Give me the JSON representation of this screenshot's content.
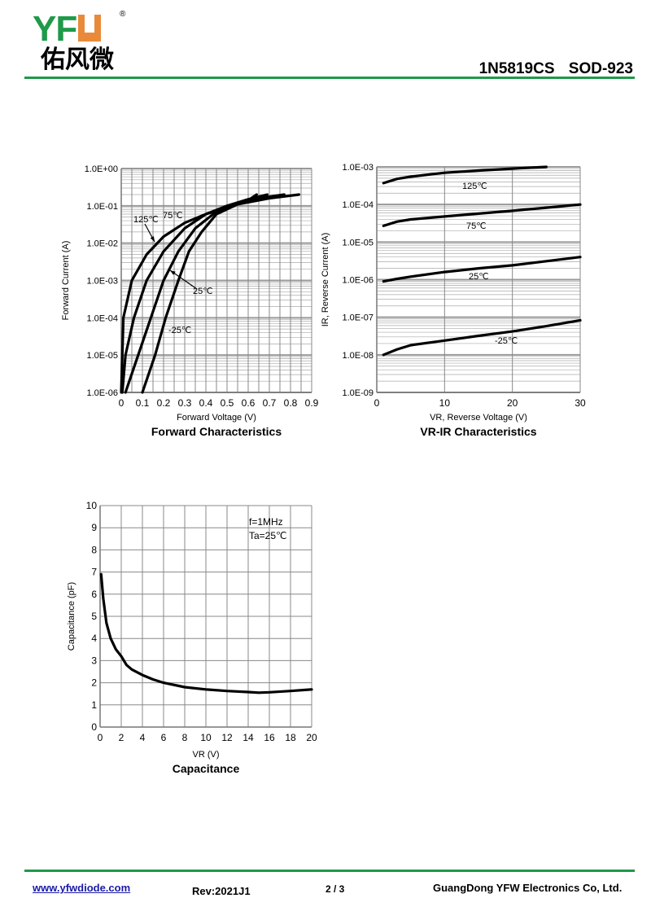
{
  "header": {
    "logo_text": "YFW",
    "logo_cn": "佑风微",
    "logo_reg": "®",
    "part": "1N5819CS",
    "package": "SOD-923"
  },
  "footer": {
    "url": "www.yfwdiode.com",
    "rev": "Rev:2021J1",
    "page": "2 / 3",
    "company": "GuangDong YFW Electronics Co, Ltd."
  },
  "colors": {
    "brand_green": "#1f9a48",
    "brand_orange": "#e98a3a"
  },
  "chart_data": [
    {
      "type": "line",
      "title": "Forward Characteristics",
      "xlabel": "Forward Voltage (V)",
      "ylabel": "Forward Current (A)",
      "yscale": "log",
      "xlim": [
        0,
        0.9
      ],
      "ylim": [
        1e-06,
        1
      ],
      "xticks": [
        "0",
        "0.1",
        "0.2",
        "0.3",
        "0.4",
        "0.5",
        "0.6",
        "0.7",
        "0.8",
        "0.9"
      ],
      "yticks": [
        "1.0E-06",
        "1.0E-05",
        "1.0E-04",
        "1.0E-03",
        "1.0E-02",
        "1.0E-01",
        "1.0E+00"
      ],
      "series": [
        {
          "name": "125℃",
          "x": [
            0,
            0.005,
            0.01,
            0.05,
            0.12,
            0.2,
            0.3,
            0.4,
            0.5,
            0.6,
            0.64
          ],
          "y": [
            1e-06,
            1e-05,
            0.0001,
            0.001,
            0.005,
            0.015,
            0.035,
            0.06,
            0.09,
            0.14,
            0.2
          ]
        },
        {
          "name": "75℃",
          "x": [
            0.005,
            0.02,
            0.06,
            0.12,
            0.2,
            0.3,
            0.4,
            0.5,
            0.6,
            0.69
          ],
          "y": [
            1e-06,
            1e-05,
            0.0001,
            0.001,
            0.006,
            0.025,
            0.06,
            0.1,
            0.15,
            0.2
          ]
        },
        {
          "name": "25℃",
          "x": [
            0.02,
            0.08,
            0.14,
            0.2,
            0.27,
            0.35,
            0.45,
            0.55,
            0.65,
            0.77
          ],
          "y": [
            1e-06,
            1e-05,
            0.0001,
            0.001,
            0.006,
            0.025,
            0.07,
            0.12,
            0.16,
            0.2
          ]
        },
        {
          "name": "-25℃",
          "x": [
            0.1,
            0.16,
            0.21,
            0.27,
            0.32,
            0.38,
            0.45,
            0.55,
            0.7,
            0.84
          ],
          "y": [
            1e-06,
            1e-05,
            0.0001,
            0.001,
            0.006,
            0.02,
            0.06,
            0.11,
            0.16,
            0.2
          ]
        }
      ]
    },
    {
      "type": "line",
      "title": "VR-IR Characteristics",
      "xlabel": "VR, Reverse Voltage (V)",
      "ylabel": "IR, Reverse Current (A)",
      "yscale": "log",
      "xlim": [
        0,
        30
      ],
      "ylim": [
        1e-09,
        0.001
      ],
      "xticks": [
        "0",
        "10",
        "20",
        "30"
      ],
      "yticks": [
        "1.0E-09",
        "1.0E-08",
        "1.0E-07",
        "1.0E-06",
        "1.0E-05",
        "1.0E-04",
        "1.0E-03"
      ],
      "series": [
        {
          "name": "125℃",
          "x": [
            1,
            3,
            5,
            10,
            15,
            20,
            25
          ],
          "y": [
            0.00037,
            0.00048,
            0.00055,
            0.0007,
            0.0008,
            0.0009,
            0.001
          ]
        },
        {
          "name": "75℃",
          "x": [
            1,
            3,
            5,
            10,
            15,
            20,
            25,
            30
          ],
          "y": [
            2.7e-05,
            3.5e-05,
            4e-05,
            4.8e-05,
            5.7e-05,
            6.8e-05,
            8.2e-05,
            0.0001
          ]
        },
        {
          "name": "25℃",
          "x": [
            1,
            3,
            5,
            10,
            15,
            20,
            25,
            30
          ],
          "y": [
            9e-07,
            1.05e-06,
            1.2e-06,
            1.6e-06,
            2e-06,
            2.4e-06,
            3.1e-06,
            4e-06
          ]
        },
        {
          "name": "-25℃",
          "x": [
            1,
            3,
            5,
            10,
            15,
            20,
            25,
            30
          ],
          "y": [
            1e-08,
            1.4e-08,
            1.8e-08,
            2.4e-08,
            3.2e-08,
            4.2e-08,
            5.8e-08,
            8.3e-08
          ]
        }
      ]
    },
    {
      "type": "line",
      "title": "Capacitance",
      "xlabel": "VR (V)",
      "ylabel": "Capacitance (pF)",
      "yscale": "linear",
      "xlim": [
        0,
        20
      ],
      "ylim": [
        0,
        10
      ],
      "xticks": [
        "0",
        "2",
        "4",
        "6",
        "8",
        "10",
        "12",
        "14",
        "16",
        "18",
        "20"
      ],
      "yticks": [
        "0",
        "1",
        "2",
        "3",
        "4",
        "5",
        "6",
        "7",
        "8",
        "9",
        "10"
      ],
      "annotations": [
        "f=1MHz",
        "Ta=25℃"
      ],
      "series": [
        {
          "name": "Capacitance",
          "x": [
            0.1,
            0.3,
            0.6,
            1,
            1.5,
            2,
            2.5,
            3,
            4,
            5,
            6,
            8,
            10,
            12,
            14,
            15,
            16,
            18,
            20
          ],
          "y": [
            6.9,
            5.8,
            4.7,
            4,
            3.5,
            3.2,
            2.8,
            2.6,
            2.35,
            2.15,
            2,
            1.8,
            1.7,
            1.63,
            1.58,
            1.55,
            1.57,
            1.63,
            1.7
          ]
        }
      ]
    }
  ]
}
